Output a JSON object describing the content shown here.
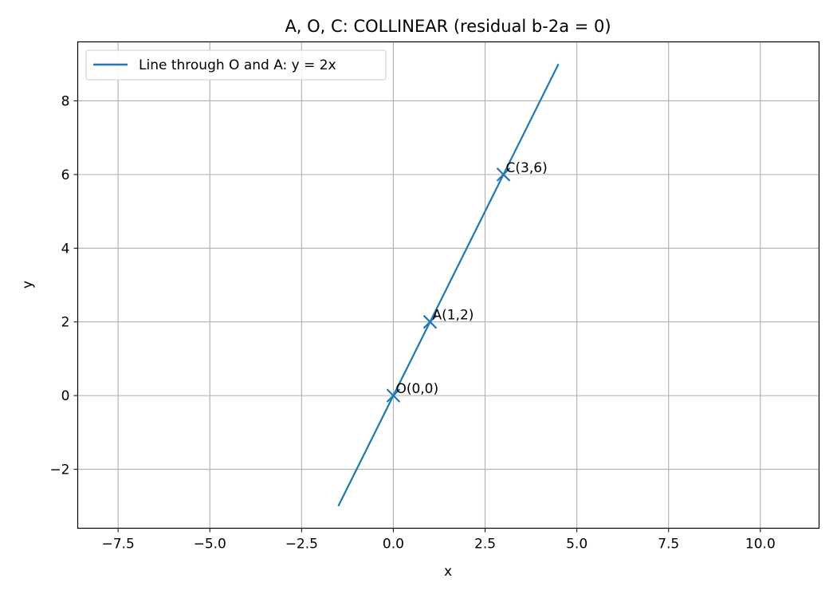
{
  "chart_data": {
    "type": "line",
    "title": "A, O, C: COLLINEAR  (residual b-2a = 0)",
    "xlabel": "x",
    "ylabel": "y",
    "xlim": [
      -8.6,
      11.6
    ],
    "ylim": [
      -3.6,
      9.6
    ],
    "xticks": [
      -7.5,
      -5.0,
      -2.5,
      0.0,
      2.5,
      5.0,
      7.5,
      10.0
    ],
    "xtick_labels": [
      "−7.5",
      "−5.0",
      "−2.5",
      "0.0",
      "2.5",
      "5.0",
      "7.5",
      "10.0"
    ],
    "yticks": [
      -2,
      0,
      2,
      4,
      6,
      8
    ],
    "ytick_labels": [
      "−2",
      "0",
      "2",
      "4",
      "6",
      "8"
    ],
    "grid": true,
    "legend_position": "top-left",
    "series": [
      {
        "name": "Line through O and A: y = 2x",
        "color": "#1f77b4",
        "x": [
          -1.5,
          4.5
        ],
        "y": [
          -3,
          9
        ]
      }
    ],
    "points": [
      {
        "label": "O(0,0)",
        "x": 0,
        "y": 0
      },
      {
        "label": "A(1,2)",
        "x": 1,
        "y": 2
      },
      {
        "label": "C(3,6)",
        "x": 3,
        "y": 6
      }
    ],
    "marker": "x",
    "marker_color": "#1f77b4"
  }
}
